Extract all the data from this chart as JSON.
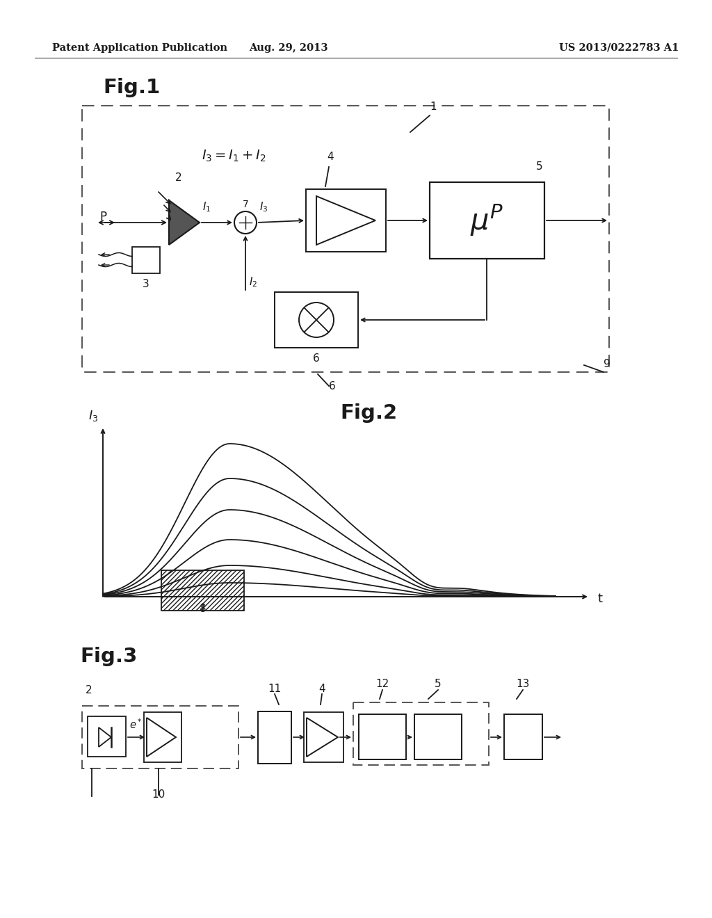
{
  "bg_color": "#ffffff",
  "header_left": "Patent Application Publication",
  "header_center": "Aug. 29, 2013",
  "header_right": "US 2013/0222783 A1",
  "fig1_label": "Fig.1",
  "fig2_label": "Fig.2",
  "fig3_label": "Fig.3",
  "lc": "#1a1a1a"
}
